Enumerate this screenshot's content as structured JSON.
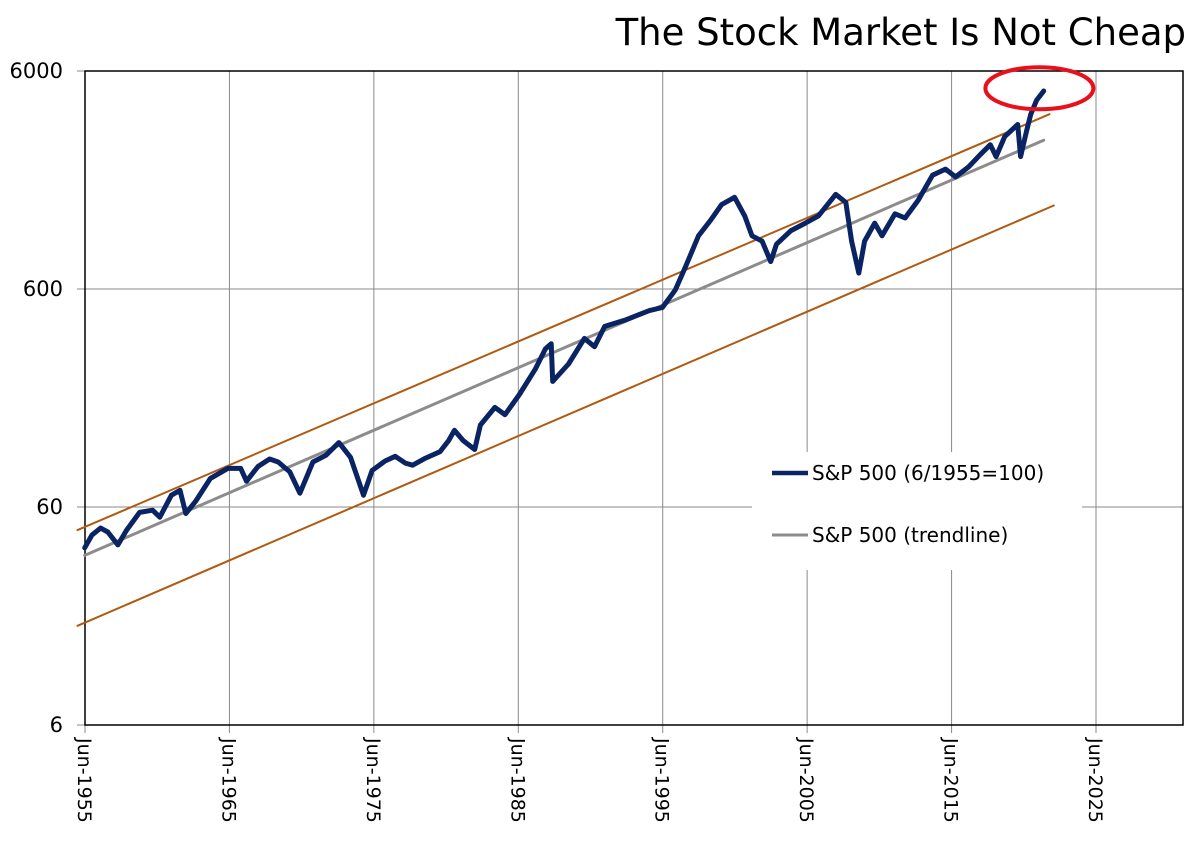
{
  "chart_data": {
    "type": "line",
    "title": "The Stock Market Is Not Cheap",
    "xlabel": "",
    "ylabel": "",
    "yscale": "log",
    "ylim": [
      6,
      6000
    ],
    "xlim": [
      1955.42,
      2031.5
    ],
    "grid": true,
    "legend_position": "center-right",
    "y_ticks": [
      {
        "value": 6,
        "label": "6"
      },
      {
        "value": 60,
        "label": "60"
      },
      {
        "value": 600,
        "label": "600"
      },
      {
        "value": 6000,
        "label": "6000"
      }
    ],
    "x_ticks": [
      {
        "value": 1955.42,
        "label": "Jun-1955"
      },
      {
        "value": 1965.42,
        "label": "Jun-1965"
      },
      {
        "value": 1975.42,
        "label": "Jun-1975"
      },
      {
        "value": 1985.42,
        "label": "Jun-1985"
      },
      {
        "value": 1995.42,
        "label": "Jun-1995"
      },
      {
        "value": 2005.42,
        "label": "Jun-2005"
      },
      {
        "value": 2015.42,
        "label": "Jun-2015"
      },
      {
        "value": 2025.42,
        "label": "Jun-2025"
      }
    ],
    "series": [
      {
        "name": "S&P 500 (6/1955=100)",
        "color": "#0a2463",
        "in_legend": true,
        "points": [
          [
            1955.4,
            39.0
          ],
          [
            1955.9,
            44.6
          ],
          [
            1956.5,
            48.0
          ],
          [
            1957.0,
            46.1
          ],
          [
            1957.7,
            40.2
          ],
          [
            1958.3,
            47.0
          ],
          [
            1959.2,
            56.7
          ],
          [
            1960.1,
            58.0
          ],
          [
            1960.6,
            53.9
          ],
          [
            1961.4,
            68.0
          ],
          [
            1962.0,
            71.6
          ],
          [
            1962.4,
            56.0
          ],
          [
            1963.1,
            64.0
          ],
          [
            1964.1,
            81.2
          ],
          [
            1965.3,
            90.2
          ],
          [
            1966.2,
            90.2
          ],
          [
            1966.6,
            78.8
          ],
          [
            1967.4,
            92.0
          ],
          [
            1968.2,
            99.6
          ],
          [
            1968.8,
            96.5
          ],
          [
            1969.6,
            86.9
          ],
          [
            1970.3,
            69.4
          ],
          [
            1971.2,
            96.5
          ],
          [
            1972.1,
            103.6
          ],
          [
            1973.0,
            118.4
          ],
          [
            1973.8,
            101.4
          ],
          [
            1974.7,
            68.0
          ],
          [
            1975.3,
            88.2
          ],
          [
            1976.2,
            97.5
          ],
          [
            1976.9,
            102.5
          ],
          [
            1977.6,
            95.4
          ],
          [
            1978.1,
            93.3
          ],
          [
            1979.0,
            100.6
          ],
          [
            1980.0,
            107.6
          ],
          [
            1980.6,
            121.1
          ],
          [
            1981.0,
            134.9
          ],
          [
            1981.6,
            121.1
          ],
          [
            1982.4,
            110.1
          ],
          [
            1982.8,
            142.6
          ],
          [
            1983.8,
            171.8
          ],
          [
            1984.5,
            159.0
          ],
          [
            1985.5,
            196.8
          ],
          [
            1986.6,
            257.4
          ],
          [
            1987.3,
            318.6
          ],
          [
            1987.7,
            336.7
          ],
          [
            1987.8,
            226.0
          ],
          [
            1988.9,
            271.6
          ],
          [
            1990.0,
            356.0
          ],
          [
            1990.7,
            326.2
          ],
          [
            1991.4,
            404.0
          ],
          [
            1992.8,
            431.7
          ],
          [
            1993.9,
            461.2
          ],
          [
            1994.5,
            477.5
          ],
          [
            1995.4,
            493.4
          ],
          [
            1996.3,
            595.0
          ],
          [
            1997.0,
            758.3
          ],
          [
            1997.9,
            1052.8
          ],
          [
            1998.7,
            1231.3
          ],
          [
            1999.5,
            1462.9
          ],
          [
            2000.4,
            1581.0
          ],
          [
            2001.1,
            1298.6
          ],
          [
            2001.6,
            1052.8
          ],
          [
            2002.3,
            995.5
          ],
          [
            2002.9,
            801.7
          ],
          [
            2003.3,
            962.6
          ],
          [
            2004.3,
            1112.3
          ],
          [
            2005.3,
            1204.0
          ],
          [
            2006.2,
            1298.6
          ],
          [
            2007.4,
            1630.0
          ],
          [
            2008.1,
            1499.2
          ],
          [
            2008.5,
            995.5
          ],
          [
            2009.0,
            709.4
          ],
          [
            2009.4,
            995.5
          ],
          [
            2010.1,
            1204.0
          ],
          [
            2010.6,
            1052.8
          ],
          [
            2011.5,
            1328.0
          ],
          [
            2012.2,
            1270.0
          ],
          [
            2013.1,
            1530.0
          ],
          [
            2014.1,
            1996.0
          ],
          [
            2015.0,
            2130.0
          ],
          [
            2015.7,
            1960.0
          ],
          [
            2016.6,
            2180.0
          ],
          [
            2017.4,
            2479.0
          ],
          [
            2018.1,
            2755.0
          ],
          [
            2018.5,
            2430.0
          ],
          [
            2019.1,
            3000.0
          ],
          [
            2020.0,
            3410.0
          ],
          [
            2020.2,
            2430.0
          ],
          [
            2020.6,
            3160.0
          ],
          [
            2020.9,
            3790.0
          ],
          [
            2021.3,
            4400.0
          ],
          [
            2021.8,
            4860.0
          ]
        ]
      },
      {
        "name": "S&P 500 (trendline)",
        "color": "#8c8c8c",
        "in_legend": true,
        "points": [
          [
            1955.4,
            36.0
          ],
          [
            2021.8,
            2889.0
          ]
        ]
      },
      {
        "name": "upper band",
        "color": "#b05a10",
        "in_legend": false,
        "points": [
          [
            1954.9,
            47.0
          ],
          [
            2022.2,
            3800.0
          ]
        ]
      },
      {
        "name": "lower band",
        "color": "#b05a10",
        "in_legend": false,
        "points": [
          [
            1954.9,
            17.1
          ],
          [
            2022.5,
            1450.0
          ]
        ]
      }
    ],
    "annotations": [
      {
        "type": "ellipse",
        "color": "#e8101a",
        "center": [
          2021.5,
          5000
        ],
        "description": "red circle highlighting latest level"
      }
    ]
  }
}
